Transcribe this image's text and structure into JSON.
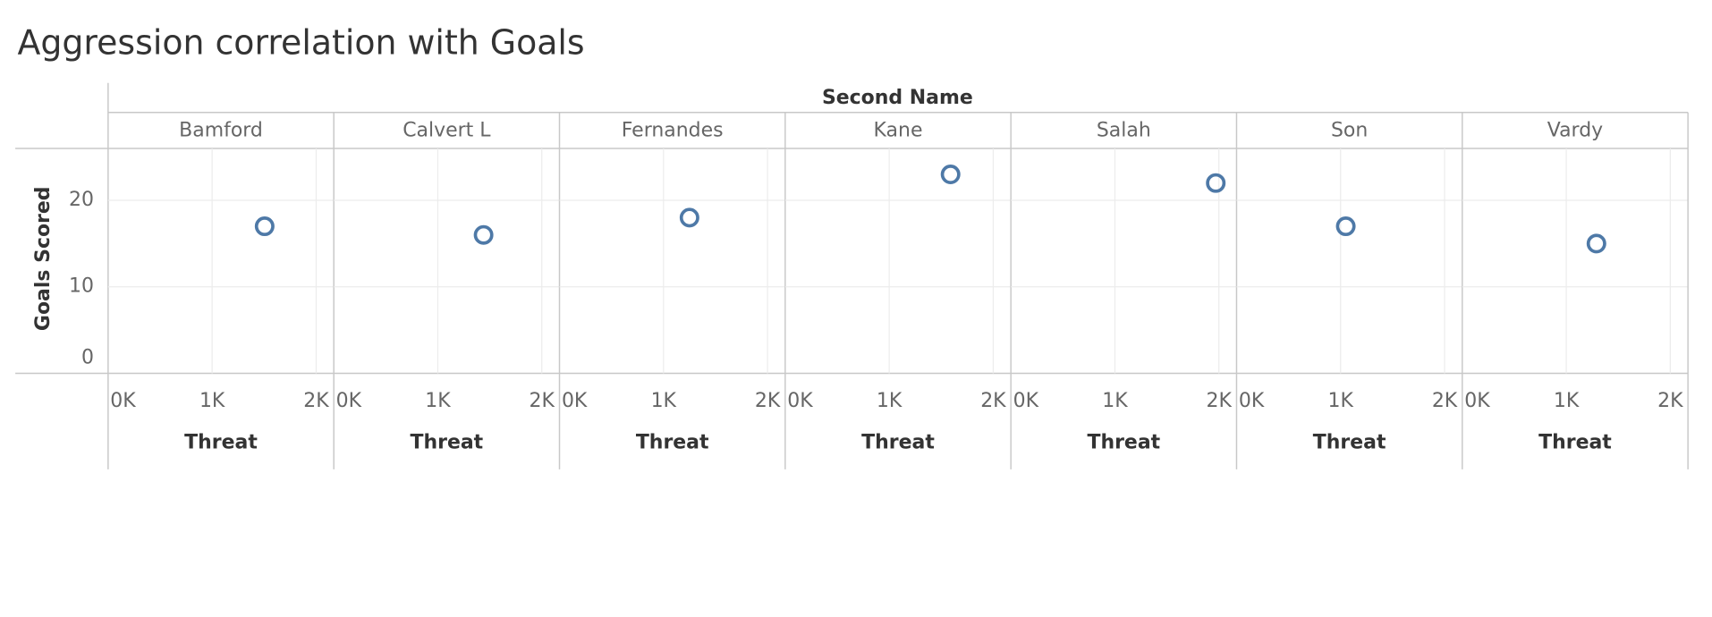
{
  "chart_data": {
    "type": "scatter",
    "title": "Aggression correlation with Goals",
    "facet_label": "Second Name",
    "x_label": "Threat",
    "y_label": "Goals Scored",
    "categories": [
      "Bamford",
      "Calvert L",
      "Fernandes",
      "Kane",
      "Salah",
      "Son",
      "Vardy"
    ],
    "x": [
      1505,
      1440,
      1250,
      1590,
      1970,
      1050,
      1290
    ],
    "values": [
      17,
      16,
      18,
      23,
      22,
      17,
      15
    ],
    "color": "#4e79a7",
    "xlim": [
      0,
      2170
    ],
    "xticks": [
      {
        "value": 0,
        "label": "0K"
      },
      {
        "value": 1000,
        "label": "1K"
      },
      {
        "value": 2000,
        "label": "2K"
      }
    ],
    "ylim": [
      0,
      26
    ],
    "yticks": [
      0,
      10,
      20
    ],
    "grid": true
  }
}
